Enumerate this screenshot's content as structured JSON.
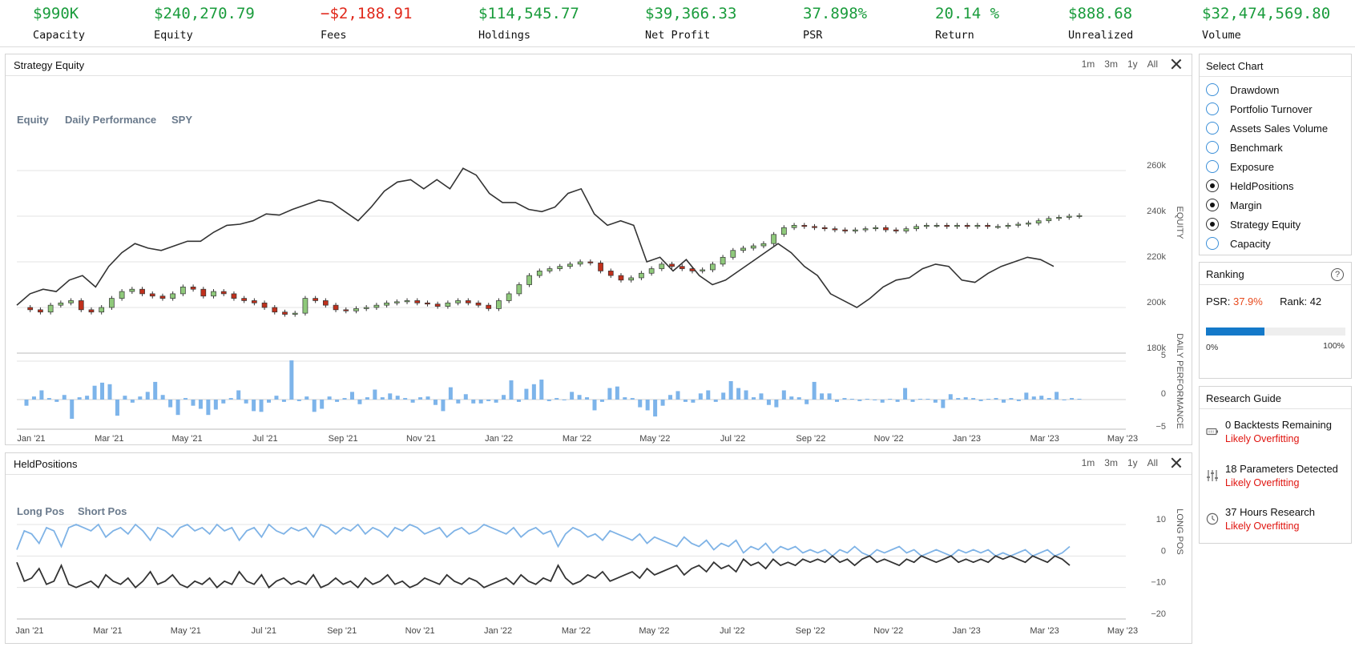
{
  "stats": [
    {
      "value": "$990K",
      "label": "Capacity",
      "negative": false
    },
    {
      "value": "$240,270.79",
      "label": "Equity",
      "negative": false
    },
    {
      "value": "−$2,188.91",
      "label": "Fees",
      "negative": true
    },
    {
      "value": "$114,545.77",
      "label": "Holdings",
      "negative": false
    },
    {
      "value": "$39,366.33",
      "label": "Net Profit",
      "negative": false
    },
    {
      "value": "37.898%",
      "label": "PSR",
      "negative": false
    },
    {
      "value": "20.14 %",
      "label": "Return",
      "negative": false
    },
    {
      "value": "$888.68",
      "label": "Unrealized",
      "negative": false
    },
    {
      "value": "$32,474,569.80",
      "label": "Volume",
      "negative": false
    }
  ],
  "range_buttons": [
    "1m",
    "3m",
    "1y",
    "All"
  ],
  "equity_panel": {
    "title": "Strategy Equity",
    "legend": [
      "Equity",
      "Daily Performance",
      "SPY"
    ],
    "equity_axis_label": "EQUITY",
    "daily_axis_label": "DAILY PERFORMANCE"
  },
  "held_panel": {
    "title": "HeldPositions",
    "legend": [
      "Long Pos",
      "Short Pos"
    ],
    "axis_label": "LONG POS"
  },
  "chart_data": [
    {
      "type": "line",
      "name": "equity-candles",
      "x_ticks": [
        "Jan '21",
        "Mar '21",
        "May '21",
        "Jul '21",
        "Sep '21",
        "Nov '21",
        "Jan '22",
        "Mar '22",
        "May '22",
        "Jul '22",
        "Sep '22",
        "Nov '22",
        "Jan '23",
        "Mar '23",
        "May '23"
      ],
      "y_ticks": [
        "260k",
        "240k",
        "220k",
        "200k",
        "180k"
      ],
      "ylim": [
        180000,
        260000
      ],
      "series": [
        {
          "name": "Equity",
          "style": "candlestick",
          "up_color": "#8fc97b",
          "down_color": "#c0301c",
          "values": [
            200000,
            199000,
            198000,
            201000,
            202000,
            203000,
            199000,
            198000,
            200000,
            204000,
            207000,
            208000,
            206000,
            205000,
            204000,
            206000,
            209000,
            208000,
            205000,
            207000,
            206000,
            204000,
            203000,
            202000,
            200000,
            198000,
            197000,
            197500,
            204000,
            203000,
            201000,
            199000,
            198500,
            199500,
            200000,
            201000,
            202000,
            202500,
            203000,
            202000,
            201500,
            200500,
            202000,
            203000,
            202000,
            201000,
            199500,
            203000,
            206000,
            210000,
            214000,
            216000,
            217000,
            218000,
            219000,
            220000,
            219500,
            216000,
            214000,
            212000,
            213000,
            215000,
            217000,
            219000,
            218000,
            217000,
            216000,
            216500,
            219000,
            222000,
            225000,
            226000,
            227000,
            228000,
            232000,
            235000,
            236000,
            235500,
            235000,
            234500,
            234000,
            233500,
            234000,
            234500,
            235000,
            234000,
            233500,
            234500,
            235500,
            236000,
            236000,
            235500,
            236000,
            235500,
            236000,
            235500,
            235500,
            236000,
            236500,
            237000,
            238000,
            239000,
            239500,
            240000,
            240270
          ]
        },
        {
          "name": "SPY",
          "style": "line",
          "color": "#333333",
          "values": [
            201000,
            206000,
            208000,
            207000,
            212000,
            214000,
            209000,
            218000,
            224000,
            228000,
            226000,
            225000,
            227000,
            229000,
            229000,
            233000,
            236000,
            236500,
            238000,
            241000,
            240500,
            243000,
            245000,
            247000,
            246000,
            242000,
            238000,
            244000,
            251000,
            255000,
            256000,
            252000,
            256000,
            252000,
            261000,
            258000,
            250000,
            246000,
            246000,
            243000,
            242000,
            244000,
            250000,
            252000,
            241000,
            236000,
            238000,
            236000,
            220000,
            222000,
            216000,
            221000,
            214000,
            210000,
            212000,
            216000,
            220000,
            224000,
            228000,
            224000,
            218000,
            214000,
            206000,
            203000,
            200000,
            204000,
            209000,
            212000,
            213000,
            217000,
            219000,
            218000,
            212000,
            211000,
            215000,
            218000,
            220000,
            222000,
            221000,
            218000
          ]
        }
      ]
    },
    {
      "type": "bar",
      "name": "daily-performance",
      "y_ticks": [
        "5",
        "0",
        "−5"
      ],
      "ylim": [
        -5,
        5
      ],
      "values": [
        -0.8,
        0.4,
        1.2,
        0.2,
        -0.3,
        0.6,
        -2.5,
        0.3,
        0.5,
        1.8,
        2.2,
        2.0,
        -2.1,
        0.5,
        -0.4,
        0.4,
        1.0,
        2.3,
        0.6,
        -1.0,
        -2.0,
        0.2,
        -0.8,
        -1.2,
        -2.0,
        -1.3,
        -0.5,
        0.2,
        1.2,
        -0.5,
        -1.5,
        -1.6,
        -0.4,
        0.5,
        -0.3,
        5.1,
        -0.2,
        0.4,
        -1.6,
        -1.2,
        0.4,
        -0.3,
        0.2,
        1.0,
        -0.6,
        0.3,
        1.3,
        0.3,
        0.8,
        0.5,
        0.2,
        -0.4,
        0.3,
        0.4,
        -0.7,
        -1.5,
        1.6,
        -0.5,
        0.7,
        -0.5,
        -0.5,
        -0.2,
        -0.4,
        0.6,
        2.5,
        -0.3,
        1.4,
        2.0,
        2.6,
        -0.2,
        0.2,
        -0.1,
        1.0,
        0.6,
        0.3,
        -1.4,
        -0.3,
        1.5,
        1.7,
        0.3,
        0.2,
        -1.0,
        -1.4,
        -2.2,
        -0.8,
        0.6,
        1.1,
        -0.3,
        -0.4,
        0.8,
        1.2,
        -0.3,
        0.9,
        2.4,
        1.5,
        1.2,
        0.3,
        0.8,
        -0.7,
        -1.0,
        1.2,
        0.4,
        0.3,
        -0.6,
        2.3,
        0.8,
        0.8,
        -0.3,
        0.2,
        0.1,
        -0.2,
        0.1,
        -0.1,
        -0.4,
        0.1,
        -0.3,
        1.5,
        -0.3,
        0.1,
        0.1,
        -0.4,
        -1.1,
        0.7,
        0.2,
        0.3,
        0.2,
        -0.2,
        0.1,
        0.2,
        -0.4,
        0.2,
        -0.2,
        0.9,
        0.4,
        0.5,
        0.2,
        1.0,
        -0.1,
        0.2,
        0.1
      ]
    },
    {
      "type": "line",
      "name": "held-positions",
      "x_ticks": [
        "Jan '21",
        "Mar '21",
        "May '21",
        "Jul '21",
        "Sep '21",
        "Nov '21",
        "Jan '22",
        "Mar '22",
        "May '22",
        "Jul '22",
        "Sep '22",
        "Nov '22",
        "Jan '23",
        "Mar '23",
        "May '23"
      ],
      "y_ticks": [
        "10",
        "0",
        "−10",
        "−20"
      ],
      "ylim": [
        -20,
        10
      ],
      "series": [
        {
          "name": "Long Pos",
          "color": "#7fb3e6",
          "values": [
            2,
            8,
            7,
            4,
            9,
            8,
            3,
            9,
            10,
            9,
            8,
            10,
            6,
            8,
            9,
            7,
            10,
            8,
            5,
            9,
            8,
            6,
            9,
            10,
            8,
            9,
            7,
            10,
            8,
            9,
            5,
            8,
            9,
            6,
            10,
            8,
            7,
            9,
            8,
            9,
            6,
            10,
            9,
            7,
            9,
            8,
            10,
            7,
            9,
            8,
            6,
            9,
            8,
            10,
            9,
            7,
            8,
            9,
            6,
            8,
            9,
            7,
            8,
            10,
            9,
            8,
            7,
            9,
            6,
            8,
            9,
            7,
            8,
            3,
            7,
            9,
            8,
            6,
            7,
            5,
            8,
            7,
            6,
            5,
            7,
            4,
            6,
            5,
            4,
            3,
            6,
            4,
            3,
            5,
            2,
            4,
            3,
            5,
            1,
            3,
            2,
            4,
            1,
            3,
            2,
            3,
            1,
            2,
            1,
            2,
            0,
            2,
            1,
            3,
            1,
            0,
            2,
            1,
            2,
            3,
            1,
            2,
            0,
            1,
            2,
            1,
            0,
            2,
            1,
            2,
            1,
            2,
            0,
            1,
            0,
            1,
            2,
            0,
            1,
            2,
            0,
            1,
            3
          ]
        },
        {
          "name": "Short Pos",
          "color": "#333333",
          "values": [
            -2,
            -8,
            -7,
            -4,
            -9,
            -8,
            -3,
            -9,
            -10,
            -9,
            -8,
            -10,
            -6,
            -8,
            -9,
            -7,
            -10,
            -8,
            -5,
            -9,
            -8,
            -6,
            -9,
            -10,
            -8,
            -9,
            -7,
            -10,
            -8,
            -9,
            -5,
            -8,
            -9,
            -6,
            -10,
            -8,
            -7,
            -9,
            -8,
            -9,
            -6,
            -10,
            -9,
            -7,
            -9,
            -8,
            -10,
            -7,
            -9,
            -8,
            -6,
            -9,
            -8,
            -10,
            -9,
            -7,
            -8,
            -9,
            -6,
            -8,
            -9,
            -7,
            -8,
            -10,
            -9,
            -8,
            -7,
            -9,
            -6,
            -8,
            -9,
            -7,
            -8,
            -3,
            -7,
            -9,
            -8,
            -6,
            -7,
            -5,
            -8,
            -7,
            -6,
            -5,
            -7,
            -4,
            -6,
            -5,
            -4,
            -3,
            -6,
            -4,
            -3,
            -5,
            -2,
            -4,
            -3,
            -5,
            -1,
            -3,
            -2,
            -4,
            -1,
            -3,
            -2,
            -3,
            -1,
            -2,
            -1,
            -2,
            0,
            -2,
            -1,
            -3,
            -1,
            0,
            -2,
            -1,
            -2,
            -3,
            -1,
            -2,
            0,
            -1,
            -2,
            -1,
            0,
            -2,
            -1,
            -2,
            -1,
            -2,
            0,
            -1,
            0,
            -1,
            -2,
            0,
            -1,
            -2,
            0,
            -1,
            -3
          ]
        }
      ]
    }
  ],
  "select_chart": {
    "title": "Select Chart",
    "options": [
      {
        "label": "Drawdown",
        "checked": false
      },
      {
        "label": "Portfolio Turnover",
        "checked": false
      },
      {
        "label": "Assets Sales Volume",
        "checked": false
      },
      {
        "label": "Benchmark",
        "checked": false
      },
      {
        "label": "Exposure",
        "checked": false
      },
      {
        "label": "HeldPositions",
        "checked": true
      },
      {
        "label": "Margin",
        "checked": true
      },
      {
        "label": "Strategy Equity",
        "checked": true
      },
      {
        "label": "Capacity",
        "checked": false
      }
    ]
  },
  "ranking": {
    "title": "Ranking",
    "psr_label": "PSR:",
    "psr_value": "37.9%",
    "rank_label": "Rank:",
    "rank_value": "42",
    "progress_fraction": 0.42,
    "min_label": "0%",
    "max_label": "100%"
  },
  "research_guide": {
    "title": "Research Guide",
    "items": [
      {
        "icon": "battery-icon",
        "text": "0 Backtests Remaining",
        "warning": "Likely Overfitting"
      },
      {
        "icon": "sliders-icon",
        "text": "18 Parameters Detected",
        "warning": "Likely Overfitting"
      },
      {
        "icon": "clock-icon",
        "text": "37 Hours Research",
        "warning": "Likely Overfitting"
      }
    ]
  }
}
